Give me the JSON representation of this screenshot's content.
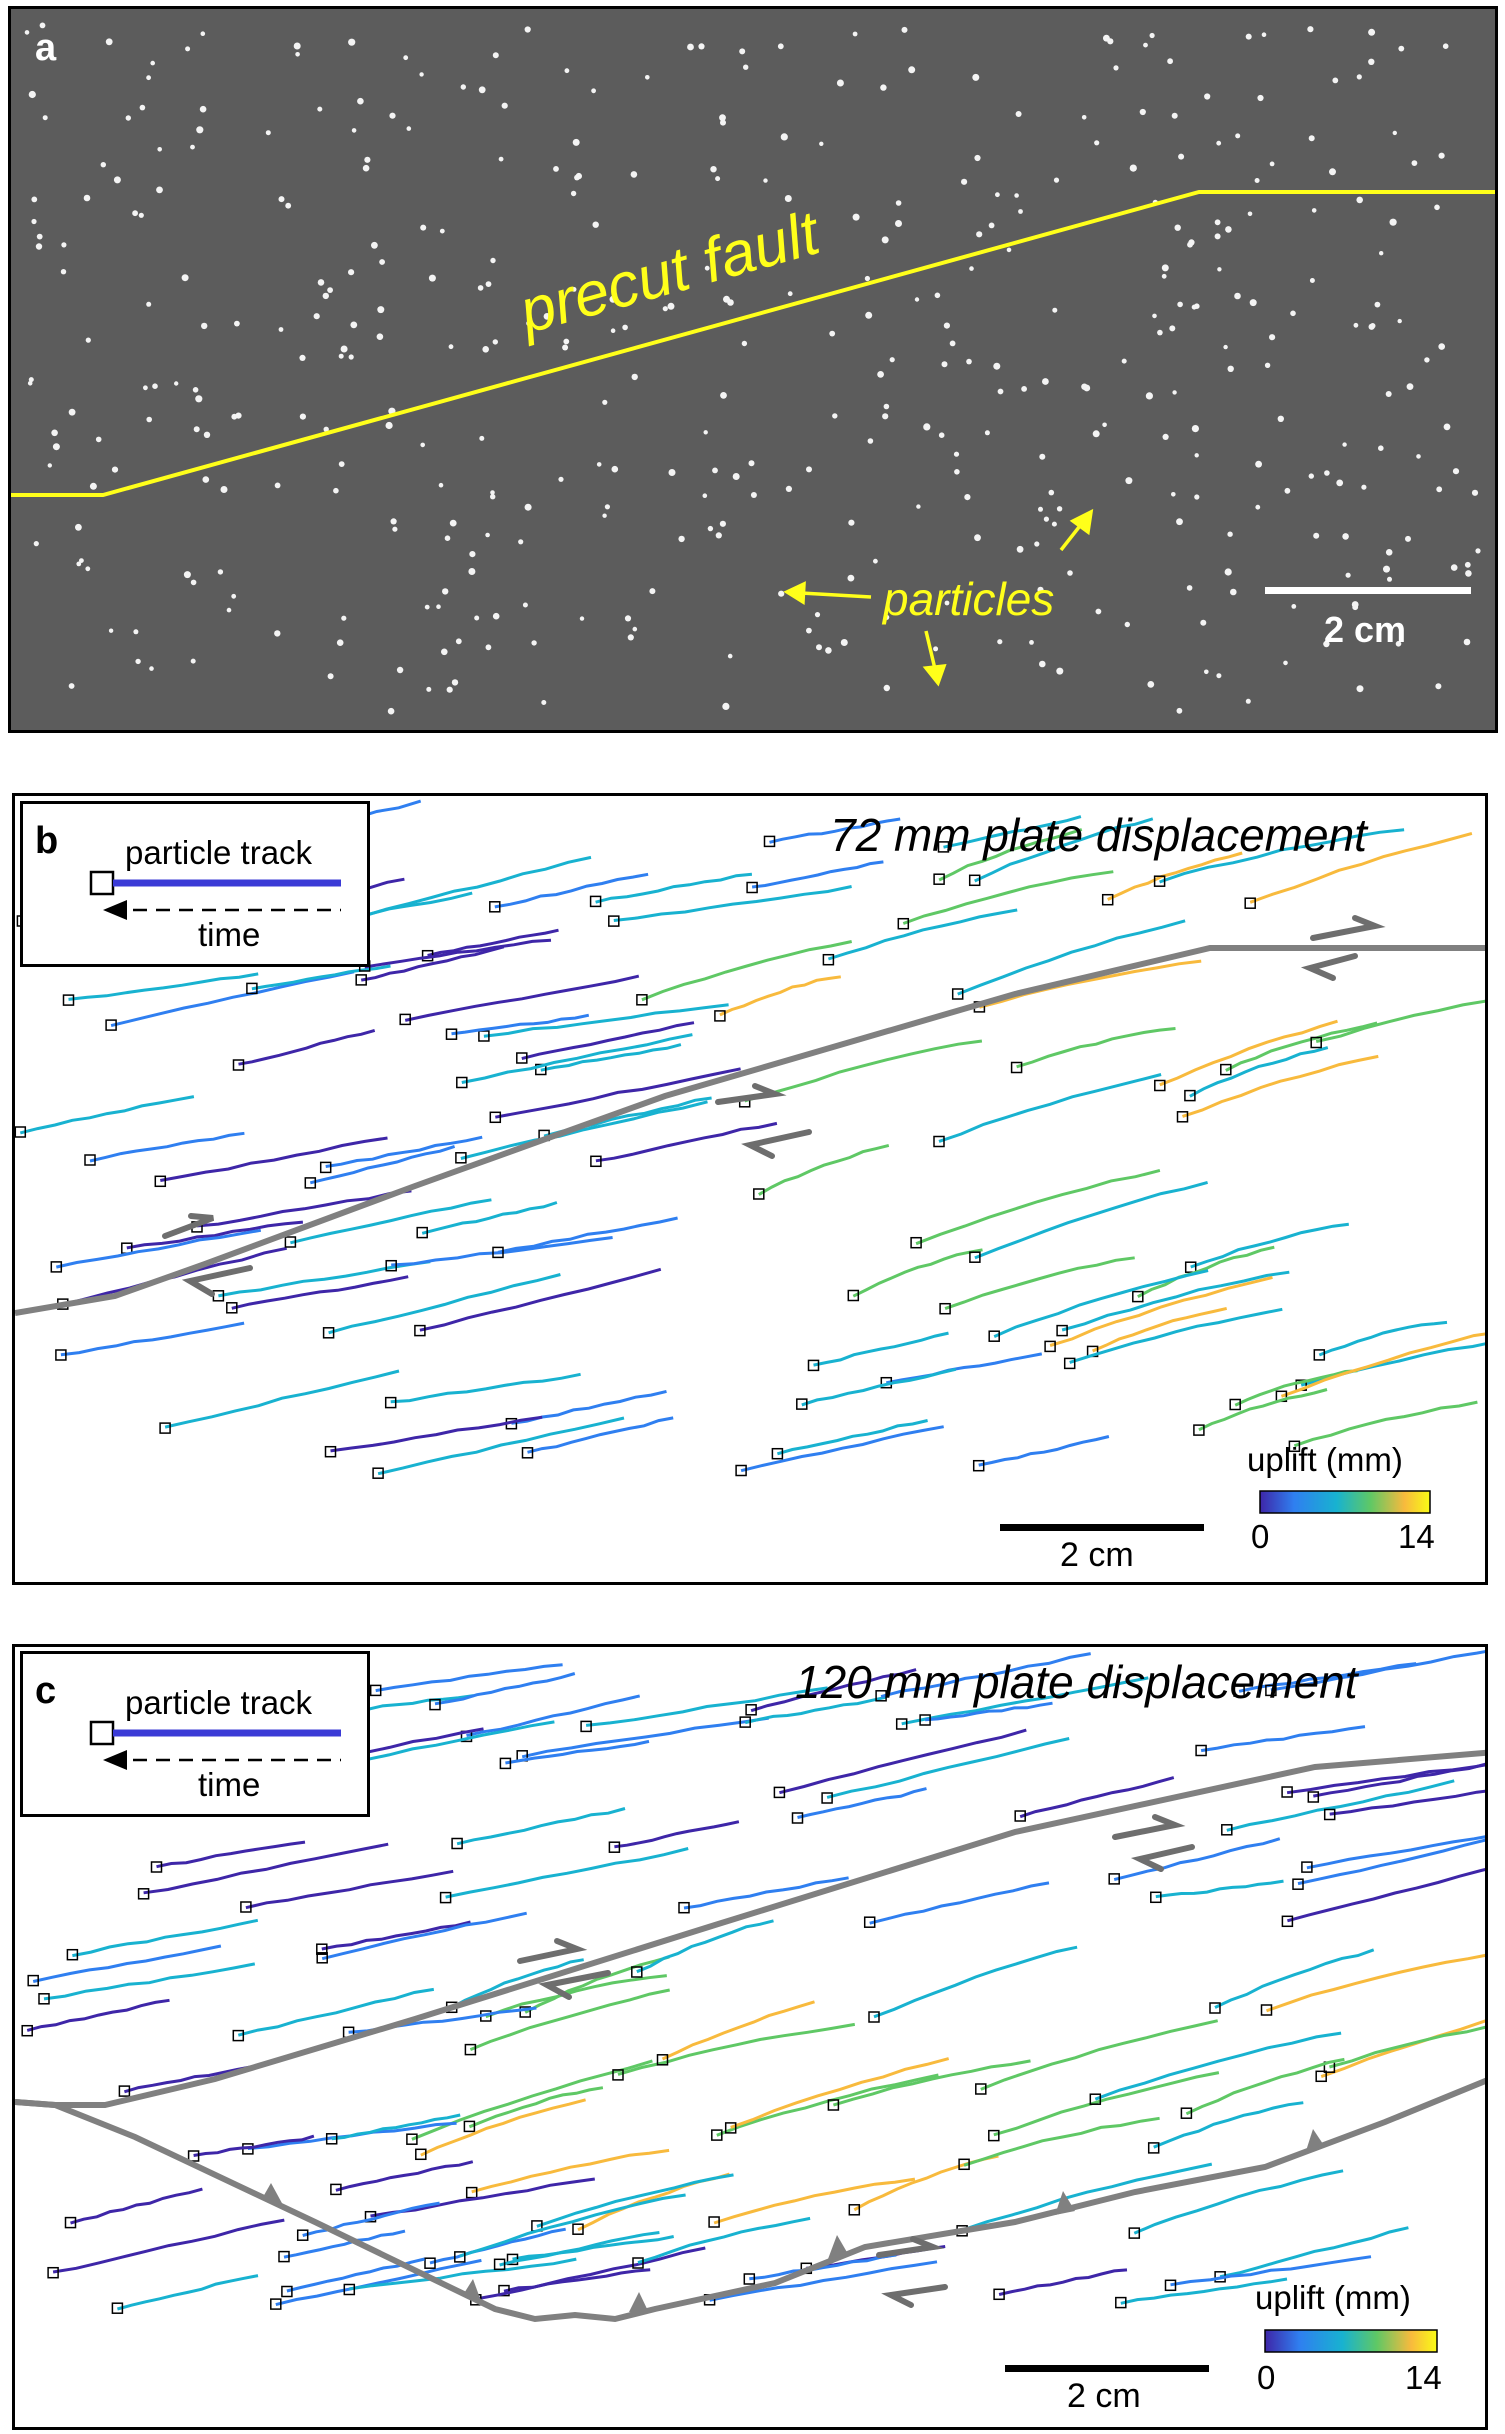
{
  "panel_a": {
    "label": "a",
    "fault_label": "precut fault",
    "particles_label": "particles",
    "scale_label": "2 cm"
  },
  "panel_b": {
    "label": "b",
    "title": "72 mm plate displacement",
    "legend": {
      "track_label": "particle track",
      "time_label": "time"
    },
    "colorbar": {
      "title": "uplift (mm)",
      "min": "0",
      "max": "14"
    },
    "scale_label": "2 cm"
  },
  "panel_c": {
    "label": "c",
    "title": "120 mm plate displacement",
    "legend": {
      "track_label": "particle track",
      "time_label": "time"
    },
    "colorbar": {
      "title": "uplift (mm)",
      "min": "0",
      "max": "14"
    },
    "scale_label": "2 cm"
  },
  "colors": {
    "photo_background": "#5c5c5c",
    "fault_yellow": "#ffff1a",
    "fault_gray": "#808080",
    "colormap": [
      "#3e26a8",
      "#2f7ff0",
      "#18b2d0",
      "#5fc865",
      "#f8ba3d",
      "#f9fb15"
    ],
    "legend_track": "#3b3bd6"
  }
}
